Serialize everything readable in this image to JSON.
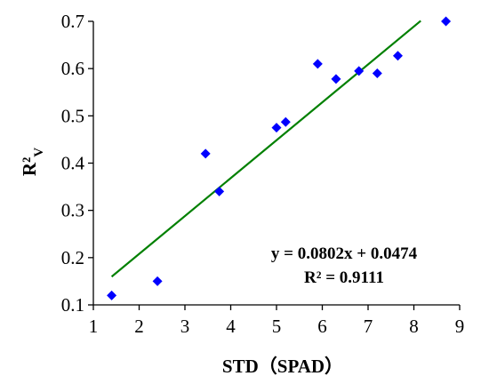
{
  "chart_data": {
    "type": "scatter",
    "xlabel": "STD（SPAD）",
    "ylabel": "R²",
    "ylabel_subscript": "V",
    "xlim": [
      1,
      9
    ],
    "ylim": [
      0.1,
      0.7
    ],
    "x_ticks": [
      1,
      2,
      3,
      4,
      5,
      6,
      7,
      8,
      9
    ],
    "y_ticks": [
      "0.1",
      "0.2",
      "0.3",
      "0.4",
      "0.5",
      "0.6",
      "0.7"
    ],
    "grid": false,
    "marker_color": "#0000FF",
    "trendline_color": "#008000",
    "points": [
      {
        "x": 1.4,
        "y": 0.12
      },
      {
        "x": 2.4,
        "y": 0.15
      },
      {
        "x": 3.45,
        "y": 0.42
      },
      {
        "x": 3.75,
        "y": 0.34
      },
      {
        "x": 5.0,
        "y": 0.475
      },
      {
        "x": 5.2,
        "y": 0.487
      },
      {
        "x": 5.9,
        "y": 0.61
      },
      {
        "x": 6.3,
        "y": 0.578
      },
      {
        "x": 6.8,
        "y": 0.595
      },
      {
        "x": 7.2,
        "y": 0.59
      },
      {
        "x": 7.65,
        "y": 0.627
      },
      {
        "x": 8.7,
        "y": 0.7
      }
    ],
    "trendline": {
      "slope": 0.0802,
      "intercept": 0.0474,
      "x_start": 1.4,
      "x_end": 8.15
    },
    "equation": "y = 0.0802x + 0.0474",
    "r_squared": "R² = 0.9111"
  }
}
